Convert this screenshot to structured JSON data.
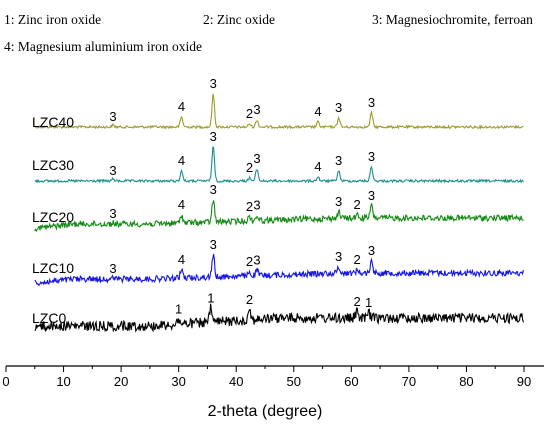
{
  "chart_data": {
    "type": "line",
    "xlabel": "2-theta (degree)",
    "ylabel": "",
    "xlim": [
      0,
      90
    ],
    "x_ticks": [
      0,
      10,
      20,
      30,
      40,
      50,
      60,
      70,
      80,
      90
    ],
    "y_ticks_shown": false,
    "grid": false,
    "legend_position": "top",
    "legend": [
      "1: Zinc iron oxide",
      "2: Zinc oxide",
      "3: Magnesiochromite, ferroan",
      "4: Magnesium aluminium iron oxide"
    ],
    "series": [
      {
        "name": "LZC40",
        "color": "#9c9c28",
        "peaks": [
          {
            "x": 18.6,
            "label": "3"
          },
          {
            "x": 30.5,
            "label": "4"
          },
          {
            "x": 36.0,
            "label": "3"
          },
          {
            "x": 42.3,
            "label": "2"
          },
          {
            "x": 43.6,
            "label": "3"
          },
          {
            "x": 54.2,
            "label": "4"
          },
          {
            "x": 57.8,
            "label": "3"
          },
          {
            "x": 63.5,
            "label": "3"
          }
        ]
      },
      {
        "name": "LZC30",
        "color": "#1a9090",
        "peaks": [
          {
            "x": 18.6,
            "label": "3"
          },
          {
            "x": 30.5,
            "label": "4"
          },
          {
            "x": 36.0,
            "label": "3"
          },
          {
            "x": 42.3,
            "label": "2"
          },
          {
            "x": 43.6,
            "label": "3"
          },
          {
            "x": 54.2,
            "label": "4"
          },
          {
            "x": 57.8,
            "label": "3"
          },
          {
            "x": 63.5,
            "label": "3"
          }
        ]
      },
      {
        "name": "LZC20",
        "color": "#138a13",
        "peaks": [
          {
            "x": 18.6,
            "label": "3"
          },
          {
            "x": 30.5,
            "label": "4"
          },
          {
            "x": 36.0,
            "label": "3"
          },
          {
            "x": 42.3,
            "label": "2"
          },
          {
            "x": 43.6,
            "label": "3"
          },
          {
            "x": 57.8,
            "label": "3"
          },
          {
            "x": 61.0,
            "label": "2"
          },
          {
            "x": 63.5,
            "label": "3"
          }
        ]
      },
      {
        "name": "LZC10",
        "color": "#1414e6",
        "peaks": [
          {
            "x": 18.6,
            "label": "3"
          },
          {
            "x": 30.5,
            "label": "4"
          },
          {
            "x": 36.0,
            "label": "3"
          },
          {
            "x": 42.3,
            "label": "2"
          },
          {
            "x": 43.6,
            "label": "3"
          },
          {
            "x": 57.8,
            "label": "3"
          },
          {
            "x": 61.0,
            "label": "2"
          },
          {
            "x": 63.5,
            "label": "3"
          }
        ]
      },
      {
        "name": "LZC0",
        "color": "#000000",
        "peaks": [
          {
            "x": 30.0,
            "label": "1"
          },
          {
            "x": 35.6,
            "label": "1"
          },
          {
            "x": 42.3,
            "label": "2"
          },
          {
            "x": 61.0,
            "label": "2"
          },
          {
            "x": 63.0,
            "label": "1"
          }
        ]
      }
    ]
  }
}
